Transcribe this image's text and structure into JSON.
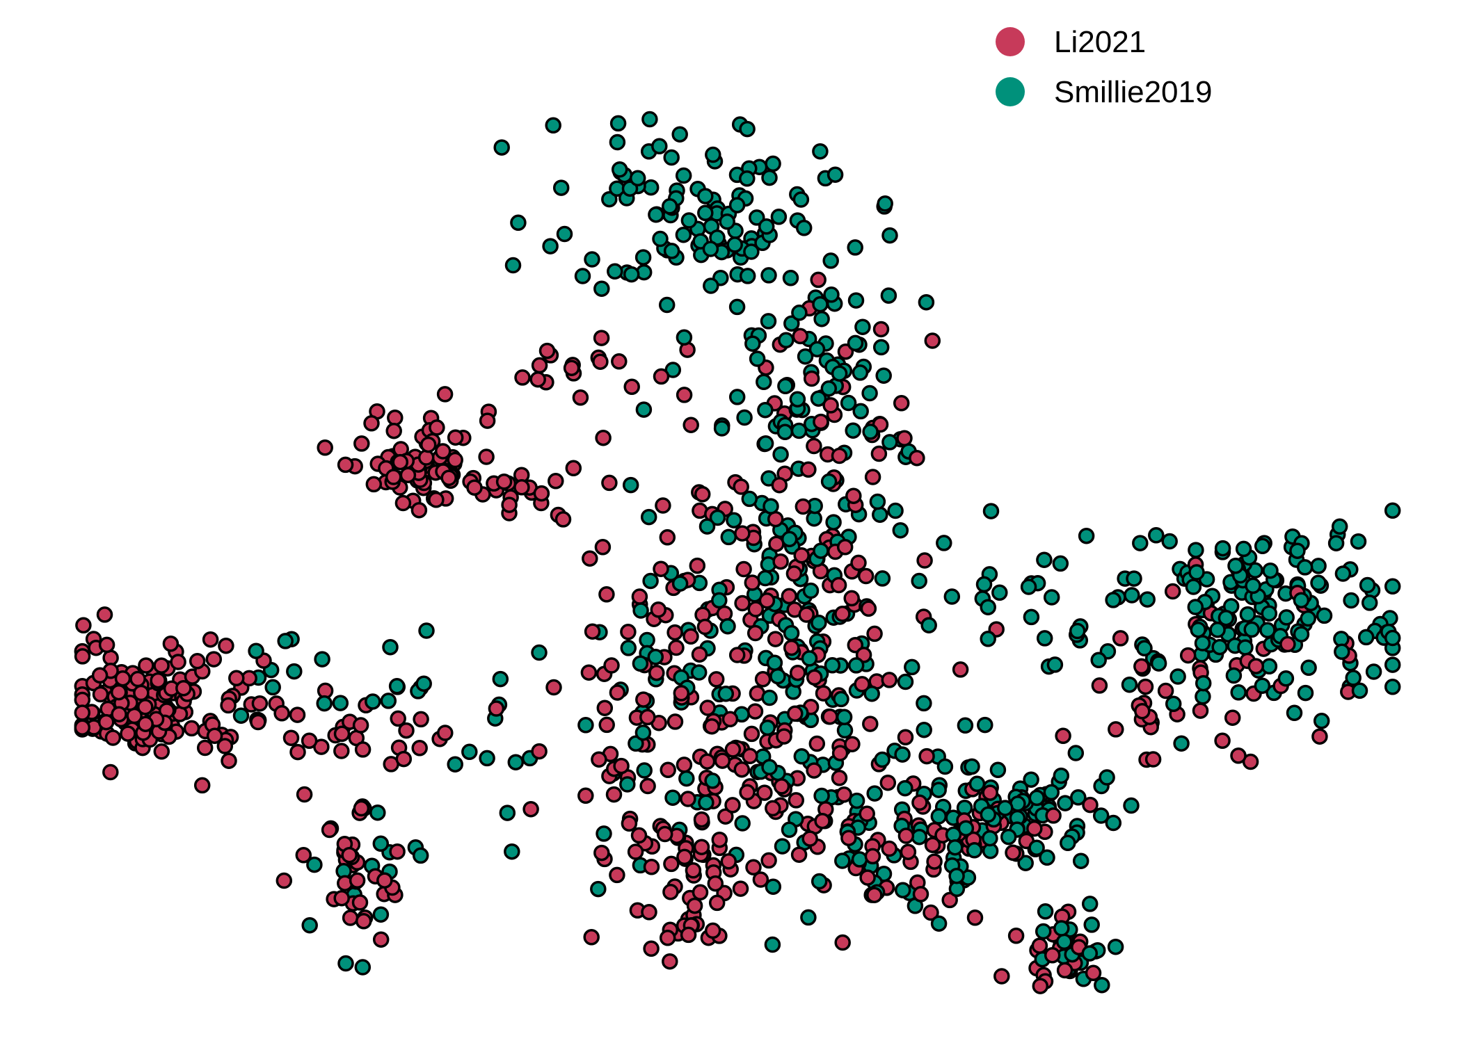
{
  "chart_data": {
    "type": "scatter",
    "title": "",
    "xlabel": "",
    "ylabel": "",
    "axes_visible": false,
    "grid": false,
    "legend_position": "top-right",
    "point_outline_color": "#000000",
    "series": [
      {
        "name": "Li2021",
        "color": "#C73A5A",
        "clusters": [
          {
            "cx": 1.2,
            "cy": 6.1,
            "sx": 0.7,
            "sy": 0.55,
            "n": 140
          },
          {
            "cx": 4.0,
            "cy": 5.3,
            "sx": 1.4,
            "sy": 0.6,
            "n": 40
          },
          {
            "cx": 4.5,
            "cy": 2.6,
            "sx": 0.35,
            "sy": 0.9,
            "n": 35
          },
          {
            "cx": 5.6,
            "cy": 10.8,
            "sx": 0.5,
            "sy": 0.45,
            "n": 70
          },
          {
            "cx": 7.0,
            "cy": 10.2,
            "sx": 0.9,
            "sy": 0.4,
            "n": 25
          },
          {
            "cx": 8.0,
            "cy": 12.6,
            "sx": 1.0,
            "sy": 0.3,
            "n": 18
          },
          {
            "cx": 10.5,
            "cy": 5.5,
            "sx": 1.4,
            "sy": 1.6,
            "n": 160
          },
          {
            "cx": 9.5,
            "cy": 2.8,
            "sx": 0.6,
            "sy": 0.4,
            "n": 30
          },
          {
            "cx": 9.7,
            "cy": 1.5,
            "sx": 0.25,
            "sy": 0.25,
            "n": 14
          },
          {
            "cx": 11.0,
            "cy": 8.9,
            "sx": 1.0,
            "sy": 0.9,
            "n": 55
          },
          {
            "cx": 12.0,
            "cy": 11.6,
            "sx": 0.8,
            "sy": 1.2,
            "n": 35
          },
          {
            "cx": 13.2,
            "cy": 3.2,
            "sx": 1.1,
            "sy": 0.6,
            "n": 55
          },
          {
            "cx": 17.3,
            "cy": 5.8,
            "sx": 1.0,
            "sy": 0.5,
            "n": 20
          },
          {
            "cx": 18.3,
            "cy": 7.1,
            "sx": 1.0,
            "sy": 0.7,
            "n": 25
          },
          {
            "cx": 15.5,
            "cy": 1.0,
            "sx": 0.45,
            "sy": 0.35,
            "n": 22
          },
          {
            "cx": 15.0,
            "cy": 3.4,
            "sx": 0.4,
            "sy": 0.4,
            "n": 10
          }
        ]
      },
      {
        "name": "Smillie2019",
        "color": "#00917B",
        "clusters": [
          {
            "cx": 10.0,
            "cy": 15.5,
            "sx": 1.2,
            "sy": 0.9,
            "n": 110
          },
          {
            "cx": 11.8,
            "cy": 12.2,
            "sx": 0.8,
            "sy": 1.3,
            "n": 80
          },
          {
            "cx": 18.5,
            "cy": 7.8,
            "sx": 1.5,
            "sy": 0.9,
            "n": 160
          },
          {
            "cx": 14.7,
            "cy": 3.8,
            "sx": 0.8,
            "sy": 0.7,
            "n": 70
          },
          {
            "cx": 11.0,
            "cy": 6.0,
            "sx": 1.6,
            "sy": 1.6,
            "n": 140
          },
          {
            "cx": 11.3,
            "cy": 9.2,
            "sx": 0.9,
            "sy": 0.8,
            "n": 40
          },
          {
            "cx": 13.0,
            "cy": 3.1,
            "sx": 1.0,
            "sy": 0.6,
            "n": 40
          },
          {
            "cx": 15.7,
            "cy": 1.0,
            "sx": 0.4,
            "sy": 0.35,
            "n": 20
          },
          {
            "cx": 4.2,
            "cy": 6.4,
            "sx": 1.0,
            "sy": 0.5,
            "n": 20
          },
          {
            "cx": 4.7,
            "cy": 2.5,
            "sx": 0.4,
            "sy": 0.8,
            "n": 14
          },
          {
            "cx": 14.5,
            "cy": 8.1,
            "sx": 0.8,
            "sy": 0.3,
            "n": 15
          },
          {
            "cx": 6.5,
            "cy": 5.1,
            "sx": 0.9,
            "sy": 0.9,
            "n": 10
          }
        ]
      }
    ],
    "xlim": [
      0,
      21
    ],
    "ylim": [
      0,
      18
    ]
  }
}
